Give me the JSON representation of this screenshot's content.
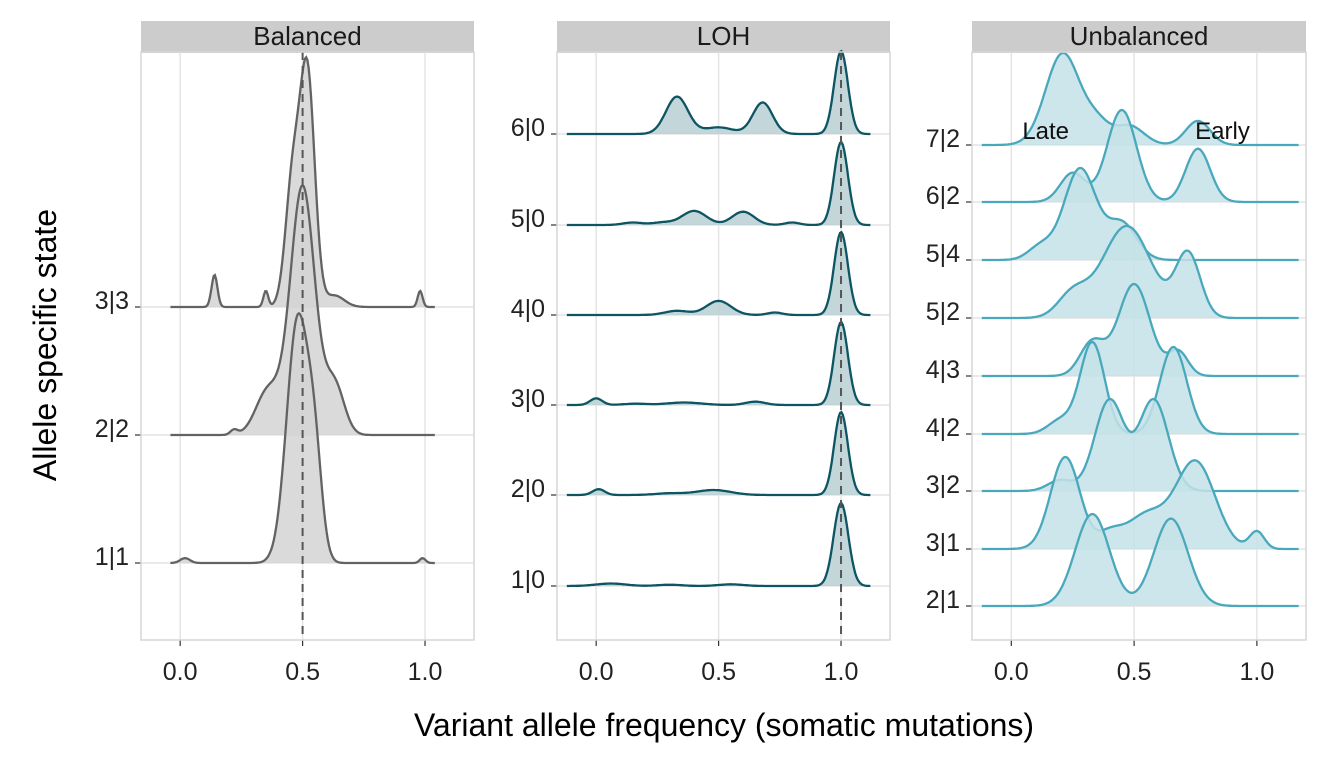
{
  "figure": {
    "ylabel": "Allele specific state",
    "xlabel": "Variant allele frequency (somatic mutations)"
  },
  "chart_data": [
    {
      "type": "ridgeline-density",
      "title": "Balanced",
      "xlim": [
        -0.16,
        1.2
      ],
      "xticks": [
        "0.0",
        "0.5",
        "1.0"
      ],
      "xtick_values": [
        0,
        0.5,
        1
      ],
      "color": "#636363",
      "fill": "#d3d3d3",
      "reference_line_x": 0.5,
      "scale": 1.85,
      "xrange": [
        -0.04,
        1.04
      ],
      "series": [
        {
          "state": "1|1",
          "peaks": [
            [
              0.48,
              0.045,
              1.0
            ],
            [
              0.55,
              0.03,
              0.35
            ],
            [
              0.02,
              0.02,
              0.02
            ],
            [
              0.99,
              0.012,
              0.02
            ]
          ]
        },
        {
          "state": "2|2",
          "peaks": [
            [
              0.5,
              0.05,
              1.0
            ],
            [
              0.36,
              0.05,
              0.18
            ],
            [
              0.63,
              0.04,
              0.2
            ],
            [
              0.22,
              0.015,
              0.02
            ]
          ]
        },
        {
          "state": "3|3",
          "peaks": [
            [
              0.52,
              0.03,
              1.0
            ],
            [
              0.46,
              0.03,
              0.55
            ],
            [
              0.14,
              0.012,
              0.14
            ],
            [
              0.35,
              0.01,
              0.07
            ],
            [
              0.98,
              0.01,
              0.07
            ],
            [
              0.63,
              0.04,
              0.05
            ]
          ]
        }
      ]
    },
    {
      "type": "ridgeline-density",
      "title": "LOH",
      "xlim": [
        -0.16,
        1.2
      ],
      "xticks": [
        "0.0",
        "0.5",
        "1.0"
      ],
      "xtick_values": [
        0,
        0.5,
        1
      ],
      "color": "#0d5563",
      "fill": "#b9cfd2",
      "reference_line_x": 1.0,
      "scale": 0.92,
      "xrange": [
        -0.12,
        1.12
      ],
      "series": [
        {
          "state": "1|0",
          "peaks": [
            [
              1.0,
              0.03,
              1.0
            ],
            [
              0.06,
              0.06,
              0.03
            ],
            [
              0.3,
              0.05,
              0.015
            ],
            [
              0.55,
              0.05,
              0.02
            ]
          ]
        },
        {
          "state": "2|0",
          "peaks": [
            [
              1.0,
              0.028,
              1.0
            ],
            [
              0.01,
              0.025,
              0.07
            ],
            [
              0.48,
              0.07,
              0.06
            ],
            [
              0.3,
              0.06,
              0.02
            ]
          ]
        },
        {
          "state": "3|0",
          "peaks": [
            [
              1.0,
              0.028,
              1.0
            ],
            [
              0.0,
              0.025,
              0.08
            ],
            [
              0.36,
              0.07,
              0.03
            ],
            [
              0.65,
              0.04,
              0.04
            ],
            [
              0.16,
              0.05,
              0.015
            ]
          ]
        },
        {
          "state": "4|0",
          "peaks": [
            [
              1.0,
              0.028,
              1.0
            ],
            [
              0.5,
              0.05,
              0.17
            ],
            [
              0.33,
              0.05,
              0.05
            ],
            [
              0.73,
              0.03,
              0.03
            ]
          ]
        },
        {
          "state": "5|0",
          "peaks": [
            [
              1.0,
              0.028,
              1.0
            ],
            [
              0.4,
              0.05,
              0.17
            ],
            [
              0.6,
              0.045,
              0.16
            ],
            [
              0.15,
              0.04,
              0.03
            ],
            [
              0.8,
              0.03,
              0.03
            ],
            [
              0.27,
              0.04,
              0.03
            ]
          ]
        },
        {
          "state": "6|0",
          "peaks": [
            [
              1.0,
              0.028,
              1.0
            ],
            [
              0.33,
              0.045,
              0.45
            ],
            [
              0.68,
              0.04,
              0.38
            ],
            [
              0.5,
              0.06,
              0.08
            ]
          ]
        }
      ]
    },
    {
      "type": "ridgeline-density",
      "title": "Unbalanced",
      "xlim": [
        -0.16,
        1.2
      ],
      "xticks": [
        "0.0",
        "0.5",
        "1.0"
      ],
      "xtick_values": [
        0,
        0.5,
        1
      ],
      "color": "#4aa8bc",
      "fill": "#c4e2e8",
      "reference_line_x": null,
      "scale": 1.0,
      "xrange": [
        -0.12,
        1.17
      ],
      "annotations": [
        {
          "text": "Late",
          "x": 0.14
        },
        {
          "text": "Early",
          "x": 0.86
        }
      ],
      "series": [
        {
          "state": "2|1",
          "peaks": [
            [
              0.33,
              0.07,
              1.0
            ],
            [
              0.65,
              0.07,
              0.95
            ]
          ]
        },
        {
          "state": "3|1",
          "peaks": [
            [
              0.22,
              0.06,
              0.95
            ],
            [
              0.75,
              0.08,
              0.9
            ],
            [
              0.55,
              0.08,
              0.35
            ],
            [
              1.0,
              0.03,
              0.18
            ],
            [
              0.4,
              0.05,
              0.15
            ]
          ]
        },
        {
          "state": "3|2",
          "peaks": [
            [
              0.4,
              0.06,
              1.0
            ],
            [
              0.58,
              0.06,
              1.0
            ],
            [
              0.2,
              0.05,
              0.12
            ]
          ]
        },
        {
          "state": "4|2",
          "peaks": [
            [
              0.33,
              0.05,
              1.0
            ],
            [
              0.66,
              0.055,
              0.95
            ],
            [
              0.2,
              0.05,
              0.15
            ]
          ]
        },
        {
          "state": "4|3",
          "peaks": [
            [
              0.5,
              0.065,
              0.95
            ],
            [
              0.33,
              0.05,
              0.35
            ],
            [
              0.68,
              0.04,
              0.25
            ]
          ]
        },
        {
          "state": "5|2",
          "peaks": [
            [
              0.47,
              0.1,
              0.8
            ],
            [
              0.72,
              0.05,
              0.55
            ],
            [
              0.25,
              0.06,
              0.2
            ]
          ]
        },
        {
          "state": "5|4",
          "peaks": [
            [
              0.28,
              0.065,
              1.0
            ],
            [
              0.45,
              0.06,
              0.4
            ],
            [
              0.12,
              0.05,
              0.15
            ]
          ]
        },
        {
          "state": "6|2",
          "peaks": [
            [
              0.45,
              0.06,
              0.95
            ],
            [
              0.76,
              0.05,
              0.55
            ],
            [
              0.25,
              0.05,
              0.3
            ]
          ]
        },
        {
          "state": "7|2",
          "peaks": [
            [
              0.21,
              0.07,
              0.95
            ],
            [
              0.48,
              0.06,
              0.2
            ],
            [
              0.76,
              0.05,
              0.25
            ],
            [
              0.35,
              0.05,
              0.2
            ]
          ]
        }
      ]
    }
  ]
}
